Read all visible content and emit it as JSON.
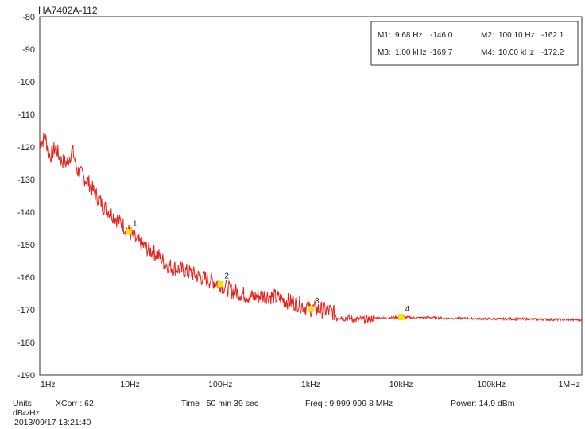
{
  "chart_data": {
    "type": "line",
    "title": "HA7402A-112",
    "x_scale": "log",
    "xlim": [
      1,
      1000000
    ],
    "ylim": [
      -190,
      -80
    ],
    "grid": true,
    "x_tick_labels": [
      "1Hz",
      "10Hz",
      "100Hz",
      "1kHz",
      "10kHz",
      "100kHz",
      "1MHz"
    ],
    "y_ticks": [
      -80,
      -90,
      -100,
      -110,
      -120,
      -130,
      -140,
      -150,
      -160,
      -170,
      -180,
      -190
    ],
    "series": [
      {
        "color": "#e8211b",
        "x": [
          1,
          1.15,
          1.3,
          1.5,
          1.7,
          2,
          2.3,
          2.6,
          3,
          3.5,
          4,
          4.5,
          5,
          6,
          7,
          8,
          9.68,
          12,
          15,
          20,
          25,
          30,
          40,
          50,
          60,
          80,
          100.1,
          130,
          170,
          220,
          300,
          400,
          500,
          700,
          1000,
          1300,
          1700,
          2000,
          2500,
          3000,
          4000,
          5000,
          7000,
          10000,
          15000,
          20000,
          30000,
          50000,
          70000,
          100000,
          200000,
          300000,
          500000,
          700000,
          1000000
        ],
        "y": [
          -119,
          -117,
          -123,
          -120,
          -124,
          -125,
          -121,
          -127,
          -129,
          -131,
          -134,
          -136,
          -138,
          -140,
          -142,
          -143.5,
          -146,
          -149,
          -151,
          -153,
          -156,
          -157,
          -158,
          -159,
          -160,
          -161,
          -162.1,
          -164,
          -165,
          -166,
          -165.5,
          -166,
          -167,
          -168,
          -169.7,
          -170,
          -170.5,
          -172,
          -172.5,
          -173,
          -173,
          -172.5,
          -172.5,
          -172.2,
          -172.5,
          -172.3,
          -172.6,
          -172.6,
          -172.7,
          -172.8,
          -172.8,
          -172.9,
          -173,
          -173,
          -173.1
        ]
      }
    ],
    "markers": [
      {
        "id": "1",
        "x": 9.68,
        "y": -146.0
      },
      {
        "id": "2",
        "x": 100.1,
        "y": -162.1
      },
      {
        "id": "3",
        "x": 1000,
        "y": -169.7
      },
      {
        "id": "4",
        "x": 10000,
        "y": -172.2
      }
    ],
    "marker_box": [
      {
        "label": "M1:",
        "freq": "9.68 Hz",
        "value": "-146.0"
      },
      {
        "label": "M2:",
        "freq": "100.10 Hz",
        "value": "-162.1"
      },
      {
        "label": "M3:",
        "freq": "1.00 kHz",
        "value": "-169.7"
      },
      {
        "label": "M4:",
        "freq": "10.00 kHz",
        "value": "-172.2"
      }
    ],
    "legend_placement": "top-right"
  },
  "footer": {
    "units_label": "Units",
    "units_value": "dBc/Hz",
    "xcorr": "XCorr : 62",
    "time": "Time : 50 min 39 sec",
    "freq": "Freq : 9.999 999 8 MHz",
    "power": "Power: 14.9 dBm",
    "timestamp": "2013/09/17 13:21:40"
  }
}
